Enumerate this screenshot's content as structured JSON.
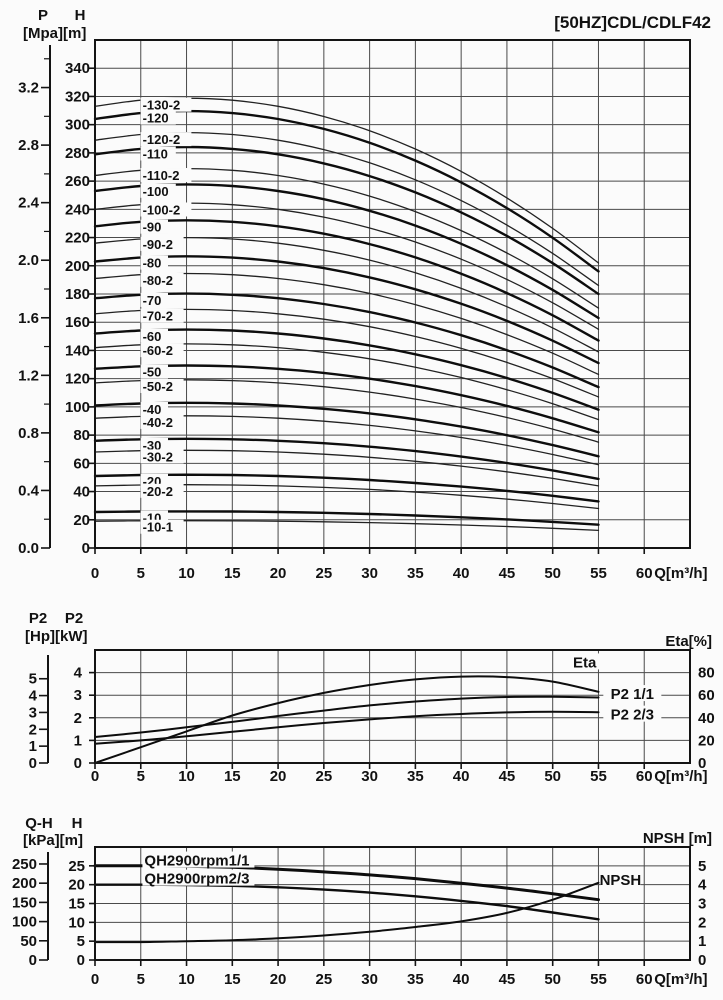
{
  "title": "[50HZ]CDL/CDLF42",
  "headers": {
    "top": {
      "col1": "P",
      "col2": "H",
      "units": "[Mpa][m]"
    },
    "mid": {
      "col1": "P2",
      "col2": "P2",
      "units": "[Hp][kW]",
      "right": "Eta[%]"
    },
    "bot": {
      "col1": "Q-H",
      "col2": "H",
      "units": "[kPa][m]",
      "right": "NPSH [m]"
    }
  },
  "chart_data": [
    {
      "type": "line",
      "title": "[50HZ]CDL/CDLF42",
      "xlabel": "Q[m³/h]",
      "ylabel": "H [m]",
      "y2label": "P [Mpa]",
      "xlim": [
        0,
        65
      ],
      "x_grid_step": 5,
      "x_ticks": [
        0,
        5,
        10,
        15,
        20,
        25,
        30,
        35,
        40,
        45,
        50,
        55,
        60
      ],
      "ylim": [
        0,
        360
      ],
      "y_grid_step": 20,
      "y_ticks": [
        0,
        20,
        40,
        60,
        80,
        100,
        120,
        140,
        160,
        180,
        200,
        220,
        240,
        260,
        280,
        300,
        320,
        340
      ],
      "secondary_axis": {
        "unit": "Mpa",
        "ticks": [
          "0.0",
          "0.4",
          "0.8",
          "1.2",
          "1.6",
          "2.0",
          "2.4",
          "2.8",
          "3.2"
        ],
        "minor_ticks": [
          0.2,
          0.6,
          1.0,
          1.4,
          1.8,
          2.2,
          2.6,
          3.0,
          3.4
        ],
        "to_primary": 101.97
      },
      "curves_q_range": [
        0,
        55
      ],
      "series": [
        {
          "label": "-130-2",
          "h0": 313,
          "h55": 202,
          "bold": false
        },
        {
          "label": "-120",
          "h0": 304,
          "h55": 196,
          "bold": true
        },
        {
          "label": "-120-2",
          "h0": 289,
          "h55": 186,
          "bold": false
        },
        {
          "label": "-110",
          "h0": 279,
          "h55": 180,
          "bold": true
        },
        {
          "label": "-110-2",
          "h0": 264,
          "h55": 170,
          "bold": false
        },
        {
          "label": "-100",
          "h0": 253,
          "h55": 163,
          "bold": true
        },
        {
          "label": "-100-2",
          "h0": 240,
          "h55": 155,
          "bold": false
        },
        {
          "label": "-90",
          "h0": 228,
          "h55": 147,
          "bold": true
        },
        {
          "label": "-90-2",
          "h0": 216,
          "h55": 139,
          "bold": false
        },
        {
          "label": "-80",
          "h0": 203,
          "h55": 131,
          "bold": true
        },
        {
          "label": "-80-2",
          "h0": 191,
          "h55": 123,
          "bold": false
        },
        {
          "label": "-70",
          "h0": 177,
          "h55": 114,
          "bold": true
        },
        {
          "label": "-70-2",
          "h0": 166,
          "h55": 107,
          "bold": false
        },
        {
          "label": "-60",
          "h0": 152,
          "h55": 98,
          "bold": true
        },
        {
          "label": "-60-2",
          "h0": 142,
          "h55": 91,
          "bold": false
        },
        {
          "label": "-50",
          "h0": 127,
          "h55": 82,
          "bold": true
        },
        {
          "label": "-50-2",
          "h0": 117,
          "h55": 75,
          "bold": false
        },
        {
          "label": "-40",
          "h0": 101,
          "h55": 65,
          "bold": true
        },
        {
          "label": "-40-2",
          "h0": 92,
          "h55": 59,
          "bold": false
        },
        {
          "label": "-30",
          "h0": 76,
          "h55": 49,
          "bold": true
        },
        {
          "label": "-30-2",
          "h0": 68,
          "h55": 44,
          "bold": false
        },
        {
          "label": "-20",
          "h0": 51,
          "h55": 33,
          "bold": true
        },
        {
          "label": "-20-2",
          "h0": 44,
          "h55": 28,
          "bold": false
        },
        {
          "label": "-10",
          "h0": 25.5,
          "h55": 16.5,
          "bold": true
        },
        {
          "label": "-10-1",
          "h0": 19,
          "h55": 12.5,
          "bold": false
        }
      ]
    },
    {
      "type": "line",
      "xlabel": "Q[m³/h]",
      "ylabel": "P2 [kW]",
      "y2label": "P2 [Hp]",
      "right_label": "Eta[%]",
      "xlim": [
        0,
        65
      ],
      "x_grid_step": 5,
      "x_ticks": [
        0,
        5,
        10,
        15,
        20,
        25,
        30,
        35,
        40,
        45,
        50,
        55,
        60
      ],
      "ylim": [
        0,
        5
      ],
      "y_grid_step": 1,
      "y_ticks": [
        0,
        1,
        2,
        3,
        4
      ],
      "secondary_axis": {
        "unit": "Hp",
        "ticks": [
          "0",
          "1",
          "2",
          "3",
          "4",
          "5"
        ],
        "to_primary": 0.7457
      },
      "right_axis": {
        "ticks": [
          0,
          20,
          40,
          60,
          80
        ],
        "to_primary": 0.05
      },
      "x_points": [
        0,
        5,
        10,
        15,
        20,
        25,
        30,
        35,
        40,
        45,
        50,
        55
      ],
      "series": [
        {
          "label": "Eta",
          "unit": "%",
          "scale": 0.05,
          "width": 2,
          "values": [
            0,
            14,
            28,
            42,
            53,
            62,
            69,
            74,
            76.5,
            76,
            72,
            63
          ],
          "label_pos": {
            "q": 53.5,
            "v": 4.45,
            "anchor": "middle"
          }
        },
        {
          "label": "P2 1/1",
          "unit": "kW",
          "scale": 1,
          "width": 2,
          "values": [
            1.15,
            1.35,
            1.58,
            1.82,
            2.08,
            2.32,
            2.55,
            2.72,
            2.85,
            2.92,
            2.93,
            2.9
          ],
          "label_pos": {
            "q": 58.7,
            "v": 3.05,
            "anchor": "middle"
          }
        },
        {
          "label": "P2 2/3",
          "unit": "kW",
          "scale": 1,
          "width": 2,
          "values": [
            0.85,
            1.0,
            1.18,
            1.38,
            1.58,
            1.77,
            1.93,
            2.07,
            2.17,
            2.24,
            2.27,
            2.25
          ],
          "label_pos": {
            "q": 58.7,
            "v": 2.14,
            "anchor": "middle"
          }
        }
      ]
    },
    {
      "type": "line",
      "xlabel": "Q[m³/h]",
      "ylabel": "H [m]",
      "y2label": "Q-H [kPa]",
      "right_label": "NPSH [m]",
      "xlim": [
        0,
        65
      ],
      "x_grid_step": 5,
      "x_ticks": [
        0,
        5,
        10,
        15,
        20,
        25,
        30,
        35,
        40,
        45,
        50,
        55,
        60
      ],
      "ylim": [
        0,
        30
      ],
      "y_grid_step": 5,
      "y_ticks": [
        0,
        5,
        10,
        15,
        20,
        25
      ],
      "secondary_axis": {
        "unit": "kPa",
        "ticks": [
          "0",
          "50",
          "100",
          "150",
          "200",
          "250"
        ],
        "to_primary": 0.10197
      },
      "right_axis": {
        "ticks": [
          0,
          1,
          2,
          3,
          4,
          5
        ],
        "to_primary": 5
      },
      "x_points": [
        0,
        5,
        10,
        15,
        20,
        25,
        30,
        35,
        40,
        45,
        50,
        55
      ],
      "series": [
        {
          "label": "QH2900rpm1/1",
          "unit": "m",
          "scale": 1,
          "width": 3,
          "values": [
            25,
            25,
            24.9,
            24.6,
            24.1,
            23.4,
            22.6,
            21.6,
            20.4,
            19.1,
            17.6,
            16
          ],
          "label_pos": {
            "q": 5.4,
            "v": 26.4,
            "anchor": "start"
          }
        },
        {
          "label": "QH2900rpm2/3",
          "unit": "m",
          "scale": 1,
          "width": 2.4,
          "values": [
            20,
            20,
            19.9,
            19.7,
            19.3,
            18.7,
            17.9,
            16.9,
            15.7,
            14.3,
            12.6,
            10.8
          ],
          "label_pos": {
            "q": 5.4,
            "v": 21.6,
            "anchor": "start"
          }
        },
        {
          "label": "NPSH",
          "unit": "m",
          "scale": 5,
          "width": 2,
          "values": [
            0.95,
            0.95,
            1.0,
            1.05,
            1.15,
            1.3,
            1.5,
            1.75,
            2.05,
            2.5,
            3.2,
            4.1
          ],
          "label_pos": {
            "q": 57.4,
            "v": 21.3,
            "anchor": "middle"
          }
        }
      ]
    }
  ]
}
